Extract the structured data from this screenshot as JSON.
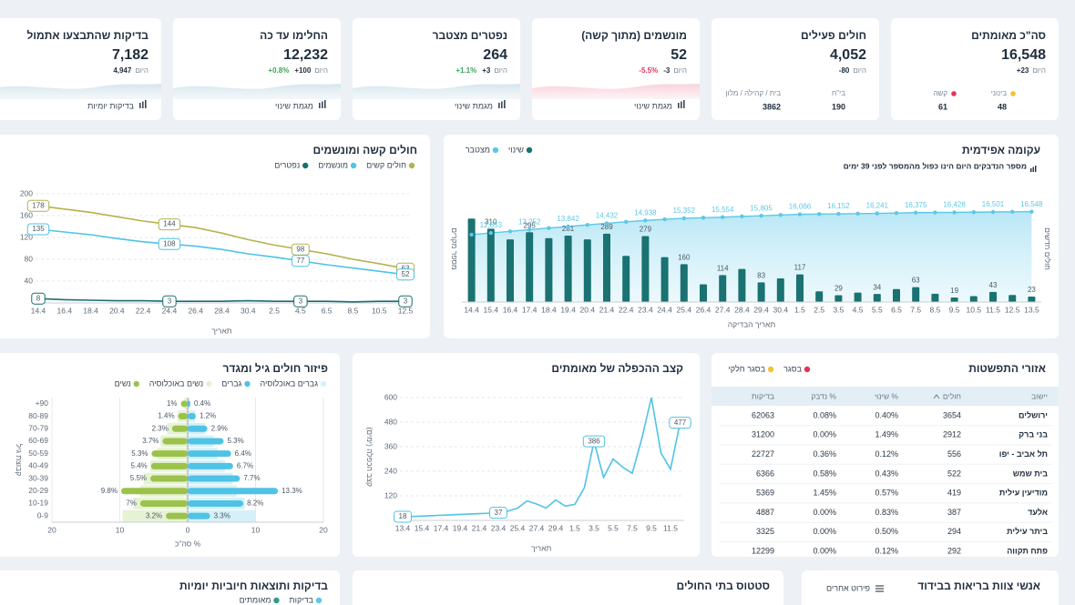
{
  "cards": [
    {
      "title": "סה\"כ מאומתים",
      "value": "16,548",
      "delta": "+23",
      "delta_label": "היום",
      "breakdown": [
        {
          "label": "בינוני",
          "value": "48",
          "color": "#f0c330"
        },
        {
          "label": "קשה",
          "value": "61",
          "color": "#e8315b"
        }
      ]
    },
    {
      "title": "חולים פעילים",
      "value": "4,052",
      "delta": "-80",
      "delta_label": "היום",
      "breakdown": [
        {
          "label": "בי\"ח",
          "value": "190"
        },
        {
          "label": "בית / קהילה / מלון",
          "value": "3862"
        }
      ]
    },
    {
      "title": "מונשמים (מתוך קשה)",
      "value": "52",
      "delta": "-3",
      "delta_label": "היום",
      "percent": "-5.5%",
      "percent_color": "#e8315b",
      "link": "מגמת שינוי"
    },
    {
      "title": "נפטרים מצטבר",
      "value": "264",
      "delta": "+3",
      "delta_label": "היום",
      "percent": "+1.1%",
      "percent_color": "#3aa55a",
      "link": "מגמת שינוי"
    },
    {
      "title": "החלימו עד כה",
      "value": "12,232",
      "delta": "+100",
      "delta_label": "היום",
      "percent": "+0.8%",
      "percent_color": "#3aa55a",
      "link": "מגמת שינוי"
    },
    {
      "title": "בדיקות שהתבצעו אתמול",
      "value": "7,182",
      "delta": "4,947",
      "delta_label": "היום",
      "link": "בדיקות יומיות"
    }
  ],
  "chart_data": [
    {
      "type": "line",
      "title": "חולים קשה ומונשמים",
      "x_label": "תאריך",
      "categories": [
        "14.4",
        "16.4",
        "18.4",
        "20.4",
        "22.4",
        "24.4",
        "26.4",
        "28.4",
        "30.4",
        "2.5",
        "4.5",
        "6.5",
        "8.5",
        "10.5",
        "12.5"
      ],
      "series": [
        {
          "name": "חולים קשים",
          "color": "#b3b34d",
          "values": [
            178,
            172,
            166,
            158,
            150,
            144,
            138,
            128,
            116,
            106,
            98,
            90,
            80,
            72,
            63
          ]
        },
        {
          "name": "מונשמים",
          "color": "#4fc3e6",
          "values": [
            135,
            130,
            125,
            118,
            112,
            108,
            104,
            98,
            90,
            84,
            77,
            70,
            64,
            58,
            52
          ]
        },
        {
          "name": "נפטרים",
          "color": "#1a6f6f",
          "values": [
            8,
            6,
            5,
            4,
            4,
            3,
            3,
            3,
            4,
            3,
            3,
            3,
            2,
            3,
            3
          ]
        }
      ],
      "ylim": [
        0,
        200
      ],
      "yticks": [
        40,
        80,
        120,
        160,
        200
      ],
      "grid": true
    },
    {
      "type": "bar_line",
      "title": "עקומה אפידמית",
      "subtitle": "מספר הנדבקים היום הינו כפול מהמספר לפני 39 ימים",
      "x_label": "תאריך הבדיקה",
      "y_label": "מספר מקרים",
      "y2_label": "חולים חדשים",
      "categories": [
        "14.4",
        "15.4",
        "16.4",
        "17.4",
        "18.4",
        "19.4",
        "20.4",
        "21.4",
        "22.4",
        "23.4",
        "24.4",
        "25.4",
        "26.4",
        "27.4",
        "28.4",
        "29.4",
        "30.4",
        "1.5",
        "2.5",
        "3.5",
        "4.5",
        "5.5",
        "6.5",
        "7.5",
        "8.5",
        "9.5",
        "10.5",
        "11.5",
        "12.5",
        "13.5"
      ],
      "series": [
        {
          "name": "שינוי",
          "color": "#1a7272",
          "values": [
            353,
            310,
            265,
            295,
            270,
            281,
            265,
            289,
            195,
            279,
            190,
            160,
            75,
            114,
            140,
            83,
            100,
            117,
            45,
            29,
            40,
            34,
            55,
            63,
            35,
            19,
            25,
            43,
            30,
            23
          ]
        },
        {
          "name": "מצטבר",
          "color": "#5bc8e8",
          "axis": "y2",
          "values": [
            12343,
            12653,
            12950,
            13252,
            13550,
            13842,
            14140,
            14432,
            14690,
            14938,
            15150,
            15352,
            15440,
            15554,
            15690,
            15805,
            15950,
            16066,
            16110,
            16152,
            16200,
            16241,
            16310,
            16375,
            16400,
            16428,
            16460,
            16501,
            16525,
            16548
          ],
          "value_labels": [
            null,
            "12,653",
            null,
            "13,252",
            null,
            "13,842",
            null,
            "14,432",
            null,
            "14,938",
            null,
            "15,352",
            null,
            "15,554",
            null,
            "15,805",
            null,
            "16,066",
            null,
            "16,152",
            null,
            "16,241",
            null,
            "16,375",
            null,
            "16,428",
            null,
            "16,501",
            null,
            "16,548"
          ]
        }
      ],
      "ylim": [
        0,
        450
      ],
      "y2lim": [
        0,
        19500
      ]
    },
    {
      "type": "pyramid",
      "title": "פיזור חולים גיל ומגדר",
      "x_label": "% סה\"כ",
      "y_label": "קבוצת גיל",
      "categories": [
        "+90",
        "80-89",
        "70-79",
        "60-69",
        "50-59",
        "40-49",
        "30-39",
        "20-29",
        "10-19",
        "0-9"
      ],
      "series": [
        {
          "name": "גברים באוכלוסיה",
          "color": "#d6f0f8",
          "values": [
            0.3,
            1.1,
            2.6,
            3.8,
            4.4,
            5.5,
            6.6,
            7.2,
            8.4,
            10
          ]
        },
        {
          "name": "גברים",
          "color": "#4fc3e6",
          "values": [
            0.4,
            1.2,
            2.9,
            5.3,
            6.4,
            6.7,
            7.7,
            13.3,
            8.2,
            3.3
          ],
          "value_labels": [
            "0.4%",
            "1.2%",
            "2.9%",
            "5.3%",
            "6.4%",
            "6.7%",
            "7.7%",
            "13.3%",
            "8.2%",
            "3.3%"
          ]
        },
        {
          "name": "נשים באוכלוסיה",
          "color": "#e6f2d4",
          "values": [
            0.5,
            1.5,
            3,
            4,
            4.5,
            5.5,
            6.5,
            7,
            8,
            9.6
          ]
        },
        {
          "name": "נשים",
          "color": "#9bc24a",
          "values": [
            1,
            1.4,
            2.3,
            3.7,
            5.3,
            5.4,
            5.5,
            9.8,
            7,
            3.2
          ],
          "value_labels": [
            "1%",
            "1.4%",
            "2.3%",
            "3.7%",
            "5.3%",
            "5.4%",
            "5.5%",
            "9.8%",
            "7%",
            "3.2%"
          ]
        }
      ],
      "xlim": [
        -20,
        20
      ],
      "xticks": [
        {
          "value": -20,
          "label": "20"
        },
        {
          "value": -10,
          "label": "10"
        },
        0,
        10,
        20
      ],
      "grid": true
    },
    {
      "type": "line",
      "title": "קצב ההכפלה של מאומתים",
      "x_label": "תאריך",
      "y_label": "קצב הכפלה (ימים)",
      "categories": [
        "13.4",
        null,
        "15.4",
        null,
        "17.4",
        null,
        "19.4",
        null,
        "21.4",
        null,
        "23.4",
        null,
        "25.4",
        null,
        "27.4",
        null,
        "29.4",
        null,
        "1.5",
        null,
        "3.5",
        null,
        "5.5",
        null,
        "7.5",
        null,
        "9.5",
        null,
        "11.5",
        null
      ],
      "values": [
        18,
        19,
        21,
        23,
        25,
        27,
        29,
        31,
        33,
        35,
        37,
        45,
        60,
        95,
        80,
        60,
        100,
        70,
        78,
        160,
        386,
        210,
        300,
        260,
        230,
        400,
        600,
        330,
        250,
        477
      ],
      "color": "#4fc3e6",
      "ylim": [
        0,
        620
      ],
      "yticks": [
        120,
        240,
        360,
        480,
        600
      ],
      "grid": true
    }
  ],
  "table": {
    "title": "אזורי התפשטות",
    "legend": [
      {
        "label": "בסגר",
        "color": "#e8315b"
      },
      {
        "label": "בסגר חלקי",
        "color": "#f0c330"
      }
    ],
    "columns": [
      "יישוב",
      "חולים",
      "% שינוי",
      "% נדבק",
      "בדיקות"
    ],
    "rows": [
      [
        "ירושלים",
        "3654",
        "0.40%",
        "0.08%",
        "62063"
      ],
      [
        "בני ברק",
        "2912",
        "1.49%",
        "0.00%",
        "31200"
      ],
      [
        "תל אביב - יפו",
        "556",
        "0.12%",
        "0.36%",
        "22727"
      ],
      [
        "בית שמש",
        "522",
        "0.43%",
        "0.58%",
        "6366"
      ],
      [
        "מודיעין עילית",
        "419",
        "0.57%",
        "1.45%",
        "5369"
      ],
      [
        "אלעד",
        "387",
        "0.83%",
        "0.00%",
        "4887"
      ],
      [
        "ביתר עילית",
        "294",
        "0.50%",
        "0.00%",
        "3325"
      ],
      [
        "פתח תקווה",
        "292",
        "0.12%",
        "0.00%",
        "12299"
      ]
    ]
  },
  "panels": [
    {
      "title": "בדיקות ותוצאות חיוביות יומיות",
      "legend": [
        {
          "label": "בדיקות",
          "color": "#5bc8e8"
        },
        {
          "label": "מאומתים",
          "color": "#2f9c86"
        }
      ]
    },
    {
      "title": "סטטוס בתי החולים"
    },
    {
      "title": "אנשי צוות בריאות בבידוד",
      "action": "פירוט אחרים"
    }
  ]
}
